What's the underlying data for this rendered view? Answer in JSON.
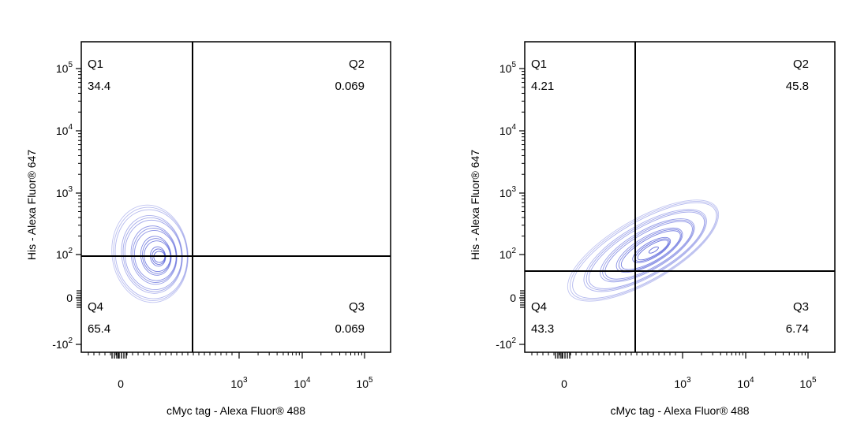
{
  "chart_data": [
    {
      "type": "contour",
      "xlabel": "cMyc tag - Alexa Fluor® 488",
      "ylabel": "His - Alexa Fluor® 647",
      "x_scale": "biexponential",
      "y_scale": "biexponential",
      "x_ticks": [
        {
          "label": "0",
          "value": 0
        },
        {
          "label": "10",
          "exp": "3",
          "value": 1000
        },
        {
          "label": "10",
          "exp": "4",
          "value": 10000
        },
        {
          "label": "10",
          "exp": "5",
          "value": 100000
        }
      ],
      "y_ticks": [
        {
          "label": "-10",
          "exp": "2",
          "value": -100
        },
        {
          "label": "0",
          "value": 0
        },
        {
          "label": "10",
          "exp": "2",
          "value": 100
        },
        {
          "label": "10",
          "exp": "3",
          "value": 1000
        },
        {
          "label": "10",
          "exp": "4",
          "value": 10000
        },
        {
          "label": "10",
          "exp": "5",
          "value": 100000
        }
      ],
      "quadrants": [
        {
          "name": "Q1",
          "percent": "34.4"
        },
        {
          "name": "Q2",
          "percent": "0.069"
        },
        {
          "name": "Q3",
          "percent": "0.069"
        },
        {
          "name": "Q4",
          "percent": "65.4"
        }
      ],
      "contour_color": "#4a55d6",
      "grid": false
    },
    {
      "type": "contour",
      "xlabel": "cMyc tag - Alexa Fluor® 488",
      "ylabel": "His - Alexa Fluor® 647",
      "x_scale": "biexponential",
      "y_scale": "biexponential",
      "x_ticks": [
        {
          "label": "0",
          "value": 0
        },
        {
          "label": "10",
          "exp": "3",
          "value": 1000
        },
        {
          "label": "10",
          "exp": "4",
          "value": 10000
        },
        {
          "label": "10",
          "exp": "5",
          "value": 100000
        }
      ],
      "y_ticks": [
        {
          "label": "-10",
          "exp": "2",
          "value": -100
        },
        {
          "label": "0",
          "value": 0
        },
        {
          "label": "10",
          "exp": "2",
          "value": 100
        },
        {
          "label": "10",
          "exp": "3",
          "value": 1000
        },
        {
          "label": "10",
          "exp": "4",
          "value": 10000
        },
        {
          "label": "10",
          "exp": "5",
          "value": 100000
        }
      ],
      "quadrants": [
        {
          "name": "Q1",
          "percent": "4.21"
        },
        {
          "name": "Q2",
          "percent": "45.8"
        },
        {
          "name": "Q3",
          "percent": "6.74"
        },
        {
          "name": "Q4",
          "percent": "43.3"
        }
      ],
      "contour_color": "#4a55d6",
      "grid": false
    }
  ]
}
